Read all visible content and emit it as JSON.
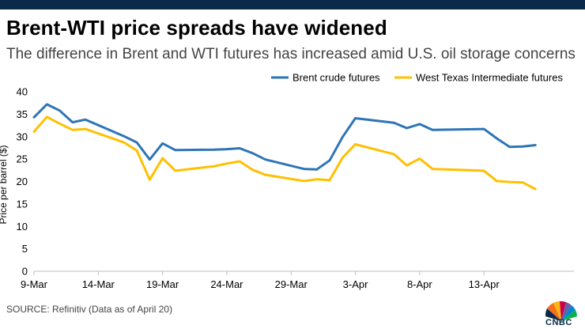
{
  "header": {
    "title": "Brent-WTI price spreads have widened",
    "subtitle": "The difference in Brent and WTI futures has increased amid U.S. oil storage concerns"
  },
  "footer": {
    "source": "SOURCE: Refinitiv (Data as of April 20)",
    "logo": "CNBC"
  },
  "colors": {
    "brent": "#2e75b6",
    "wti": "#ffc000",
    "header_bar": "#0b2a4a"
  },
  "chart_data": {
    "type": "line",
    "ylabel": "Price per barrel ($)",
    "ylim": [
      0,
      40
    ],
    "yticks": [
      0,
      5,
      10,
      15,
      20,
      25,
      30,
      35,
      40
    ],
    "x_range": [
      "2020-03-09",
      "2020-04-20"
    ],
    "xticks": [
      {
        "date": "2020-03-09",
        "label": "9-Mar"
      },
      {
        "date": "2020-03-14",
        "label": "14-Mar"
      },
      {
        "date": "2020-03-19",
        "label": "19-Mar"
      },
      {
        "date": "2020-03-24",
        "label": "24-Mar"
      },
      {
        "date": "2020-03-29",
        "label": "29-Mar"
      },
      {
        "date": "2020-04-03",
        "label": "3-Apr"
      },
      {
        "date": "2020-04-08",
        "label": "8-Apr"
      },
      {
        "date": "2020-04-13",
        "label": "13-Apr"
      }
    ],
    "legend_position": "top-right",
    "series": [
      {
        "name": "Brent crude futures",
        "color_key": "brent",
        "points": [
          [
            "2020-03-09",
            34.3
          ],
          [
            "2020-03-10",
            37.2
          ],
          [
            "2020-03-11",
            35.8
          ],
          [
            "2020-03-12",
            33.2
          ],
          [
            "2020-03-13",
            33.8
          ],
          [
            "2020-03-16",
            30.1
          ],
          [
            "2020-03-17",
            28.7
          ],
          [
            "2020-03-18",
            24.9
          ],
          [
            "2020-03-19",
            28.5
          ],
          [
            "2020-03-20",
            27.0
          ],
          [
            "2020-03-23",
            27.1
          ],
          [
            "2020-03-24",
            27.2
          ],
          [
            "2020-03-25",
            27.4
          ],
          [
            "2020-03-26",
            26.3
          ],
          [
            "2020-03-27",
            24.9
          ],
          [
            "2020-03-30",
            22.8
          ],
          [
            "2020-03-31",
            22.7
          ],
          [
            "2020-04-01",
            24.7
          ],
          [
            "2020-04-02",
            29.9
          ],
          [
            "2020-04-03",
            34.1
          ],
          [
            "2020-04-06",
            33.1
          ],
          [
            "2020-04-07",
            31.9
          ],
          [
            "2020-04-08",
            32.8
          ],
          [
            "2020-04-09",
            31.5
          ],
          [
            "2020-04-13",
            31.7
          ],
          [
            "2020-04-14",
            29.6
          ],
          [
            "2020-04-15",
            27.7
          ],
          [
            "2020-04-16",
            27.8
          ],
          [
            "2020-04-17",
            28.1
          ]
        ]
      },
      {
        "name": "West Texas Intermediate futures",
        "color_key": "wti",
        "points": [
          [
            "2020-03-09",
            31.1
          ],
          [
            "2020-03-10",
            34.4
          ],
          [
            "2020-03-11",
            32.9
          ],
          [
            "2020-03-12",
            31.5
          ],
          [
            "2020-03-13",
            31.7
          ],
          [
            "2020-03-16",
            28.7
          ],
          [
            "2020-03-17",
            26.9
          ],
          [
            "2020-03-18",
            20.4
          ],
          [
            "2020-03-19",
            25.2
          ],
          [
            "2020-03-20",
            22.4
          ],
          [
            "2020-03-23",
            23.4
          ],
          [
            "2020-03-24",
            24.0
          ],
          [
            "2020-03-25",
            24.5
          ],
          [
            "2020-03-26",
            22.6
          ],
          [
            "2020-03-27",
            21.5
          ],
          [
            "2020-03-30",
            20.1
          ],
          [
            "2020-03-31",
            20.5
          ],
          [
            "2020-04-01",
            20.3
          ],
          [
            "2020-04-02",
            25.3
          ],
          [
            "2020-04-03",
            28.3
          ],
          [
            "2020-04-06",
            26.1
          ],
          [
            "2020-04-07",
            23.6
          ],
          [
            "2020-04-08",
            25.1
          ],
          [
            "2020-04-09",
            22.8
          ],
          [
            "2020-04-13",
            22.4
          ],
          [
            "2020-04-14",
            20.1
          ],
          [
            "2020-04-15",
            19.9
          ],
          [
            "2020-04-16",
            19.8
          ],
          [
            "2020-04-17",
            18.3
          ]
        ]
      }
    ]
  }
}
